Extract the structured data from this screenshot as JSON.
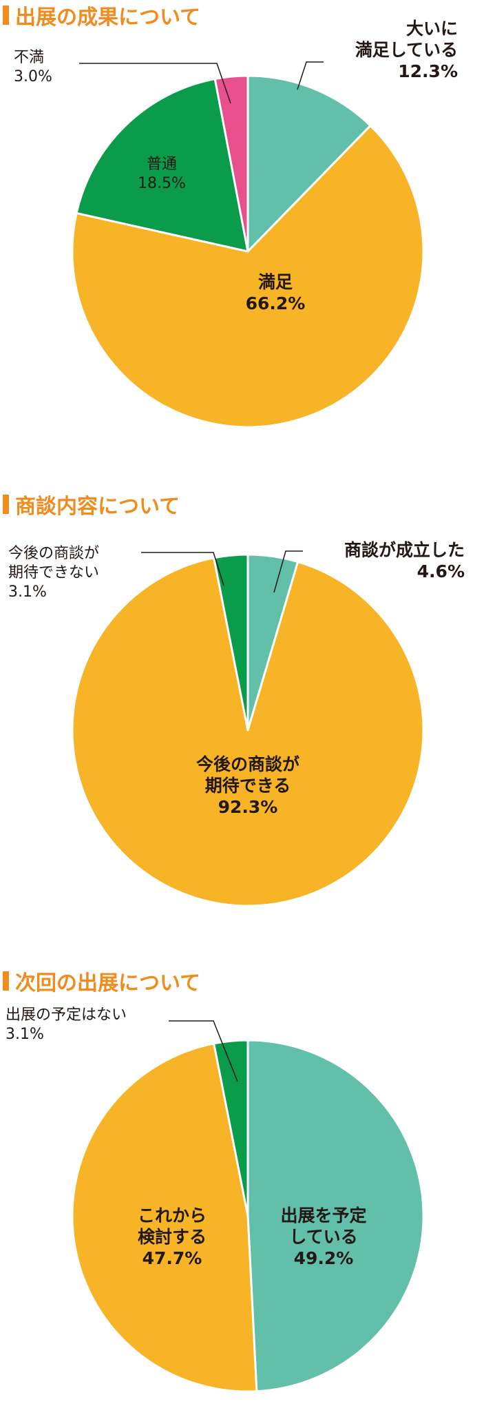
{
  "colors": {
    "title": "#f08c1e",
    "title_bar": "#f08c1e",
    "teal": "#62c0aa",
    "yellow": "#f6b426",
    "green": "#0a9b4b",
    "pink": "#e84f8d",
    "text": "#231815",
    "leader": "#231815"
  },
  "chart_data": [
    {
      "type": "pie",
      "title": "出展の成果について",
      "slices": [
        {
          "label": "大いに満足している",
          "label_lines": [
            "大いに",
            "満足している"
          ],
          "value": 12.3,
          "value_text": "12.3%",
          "color": "teal"
        },
        {
          "label": "満足",
          "label_lines": [
            "満足"
          ],
          "value": 66.2,
          "value_text": "66.2%",
          "color": "yellow"
        },
        {
          "label": "普通",
          "label_lines": [
            "普通"
          ],
          "value": 18.5,
          "value_text": "18.5%",
          "color": "green"
        },
        {
          "label": "不満",
          "label_lines": [
            "不満"
          ],
          "value": 3.0,
          "value_text": "3.0%",
          "color": "pink"
        }
      ]
    },
    {
      "type": "pie",
      "title": "商談内容について",
      "slices": [
        {
          "label": "商談が成立した",
          "label_lines": [
            "商談が成立した"
          ],
          "value": 4.6,
          "value_text": "4.6%",
          "color": "teal"
        },
        {
          "label": "今後の商談が期待できる",
          "label_lines": [
            "今後の商談が",
            "期待できる"
          ],
          "value": 92.3,
          "value_text": "92.3%",
          "color": "yellow"
        },
        {
          "label": "今後の商談が期待できない",
          "label_lines": [
            "今後の商談が",
            "期待できない"
          ],
          "value": 3.1,
          "value_text": "3.1%",
          "color": "green"
        }
      ]
    },
    {
      "type": "pie",
      "title": "次回の出展について",
      "slices": [
        {
          "label": "出展を予定している",
          "label_lines": [
            "出展を予定",
            "している"
          ],
          "value": 49.2,
          "value_text": "49.2%",
          "color": "teal"
        },
        {
          "label": "これから検討する",
          "label_lines": [
            "これから",
            "検討する"
          ],
          "value": 47.7,
          "value_text": "47.7%",
          "color": "yellow"
        },
        {
          "label": "出展の予定はない",
          "label_lines": [
            "出展の予定はない"
          ],
          "value": 3.1,
          "value_text": "3.1%",
          "color": "green"
        }
      ]
    }
  ]
}
